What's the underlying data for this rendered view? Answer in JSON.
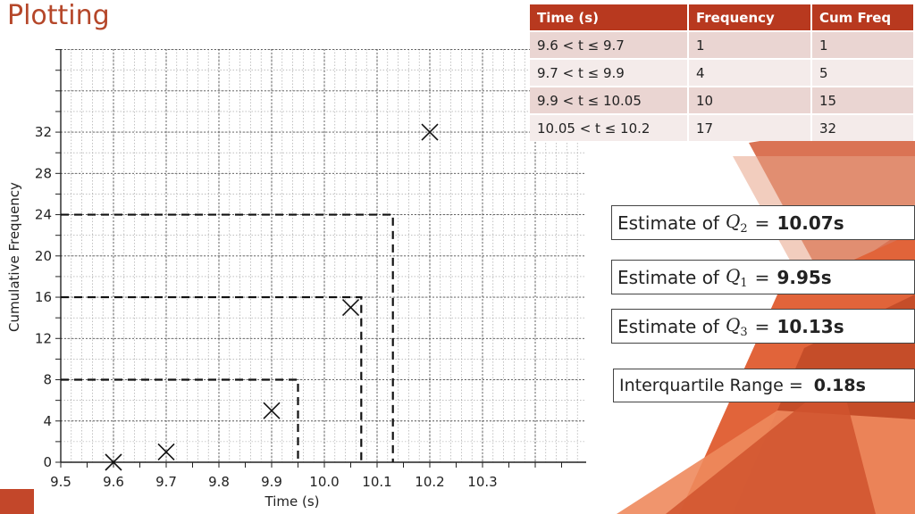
{
  "slide": {
    "title": "Plotting"
  },
  "table": {
    "headers": [
      "Time (s)",
      "Frequency",
      "Cum Freq"
    ],
    "rows": [
      [
        "9.6 < t ≤ 9.7",
        "1",
        "1"
      ],
      [
        "9.7 < t ≤ 9.9",
        "4",
        "5"
      ],
      [
        "9.9 < t ≤ 10.05",
        "10",
        "15"
      ],
      [
        "10.05 < t ≤ 10.2",
        "17",
        "32"
      ]
    ]
  },
  "estimates": {
    "q2": {
      "label": "Estimate of",
      "symbol": "Q",
      "sub": "2",
      "eq": "=",
      "value": "10.07s"
    },
    "q1": {
      "label": "Estimate of",
      "symbol": "Q",
      "sub": "1",
      "eq": "=",
      "value": "9.95s"
    },
    "q3": {
      "label": "Estimate of",
      "symbol": "Q",
      "sub": "3",
      "eq": "=",
      "value": "10.13s"
    },
    "iqr": {
      "label": "Interquartile Range =",
      "value": "0.18s"
    }
  },
  "colors": {
    "accent": "#b5472a",
    "header": "#b8391f",
    "row_odd": "#ead5d2",
    "row_even": "#f4ebea",
    "grid": "#999999"
  },
  "chart_data": {
    "type": "scatter",
    "xlabel": "Time (s)",
    "ylabel": "Cumulative Frequency",
    "xlim": [
      9.5,
      10.5
    ],
    "ylim": [
      0,
      36
    ],
    "x_ticks": [
      "9.5",
      "9.6",
      "9.7",
      "9.8",
      "9.9",
      "10.0",
      "10.1",
      "10.2",
      "10.3"
    ],
    "x_tick_values": [
      9.5,
      9.6,
      9.7,
      9.8,
      9.9,
      10.0,
      10.1,
      10.2,
      10.3
    ],
    "y_ticks": [
      "0",
      "4",
      "8",
      "12",
      "16",
      "20",
      "24",
      "28",
      "32"
    ],
    "y_tick_values": [
      0,
      4,
      8,
      12,
      16,
      20,
      24,
      28,
      32
    ],
    "grid": true,
    "points": [
      {
        "x": 9.6,
        "y": 0
      },
      {
        "x": 9.7,
        "y": 1
      },
      {
        "x": 9.9,
        "y": 5
      },
      {
        "x": 10.05,
        "y": 15
      },
      {
        "x": 10.2,
        "y": 32
      }
    ],
    "quartile_guides": [
      {
        "cf": 8,
        "time": 9.95
      },
      {
        "cf": 16,
        "time": 10.07
      },
      {
        "cf": 24,
        "time": 10.13
      }
    ]
  }
}
